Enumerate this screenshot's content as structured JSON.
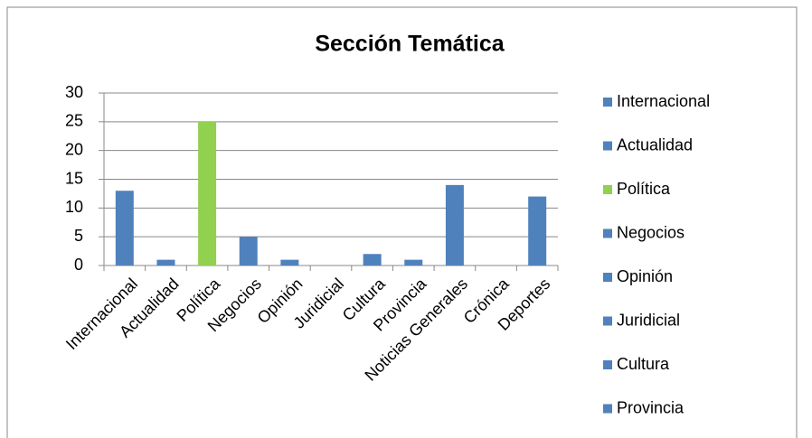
{
  "chart_data": {
    "type": "bar",
    "title": "Sección Temática",
    "categories": [
      "Internacional",
      "Actualidad",
      "Política",
      "Negocios",
      "Opinión",
      "Juridicial",
      "Cultura",
      "Provincia",
      "Noticias Generales",
      "Crónica",
      "Deportes"
    ],
    "values": [
      13,
      1,
      25,
      5,
      1,
      0,
      2,
      1,
      14,
      0,
      12
    ],
    "colors": [
      "#4f81bd",
      "#4f81bd",
      "#92d050",
      "#4f81bd",
      "#4f81bd",
      "#4f81bd",
      "#4f81bd",
      "#4f81bd",
      "#4f81bd",
      "#4f81bd",
      "#4f81bd"
    ],
    "ylim": [
      0,
      30
    ],
    "yticks": [
      0,
      5,
      10,
      15,
      20,
      25,
      30
    ],
    "grid": true,
    "legend": "right"
  }
}
